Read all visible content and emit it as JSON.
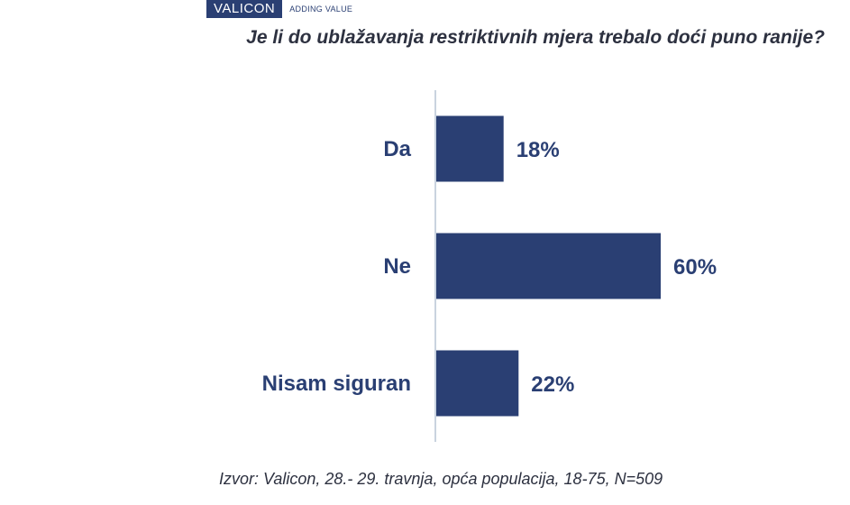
{
  "brand": {
    "name": "VALICON",
    "tagline": "ADDING VALUE"
  },
  "title": "Je li do ublažavanja restriktivnih mjera trebalo doći puno ranije?",
  "source": "Izvor: Valicon, 28.- 29. travnja, opća populacija, 18-75, N=509",
  "colors": {
    "bar": "#2a3f73",
    "axis": "#c9d3df",
    "text": "#2a3f73"
  },
  "chart_data": {
    "type": "bar",
    "orientation": "horizontal",
    "categories": [
      "Da",
      "Ne",
      "Nisam siguran"
    ],
    "values": [
      18,
      60,
      22
    ],
    "value_labels": [
      "18%",
      "60%",
      "22%"
    ],
    "unit": "%",
    "title": "Je li do ublažavanja restriktivnih mjera trebalo doći puno ranije?",
    "xlabel": "",
    "ylabel": "",
    "xlim": [
      0,
      100
    ],
    "grid": false,
    "legend": "none"
  }
}
